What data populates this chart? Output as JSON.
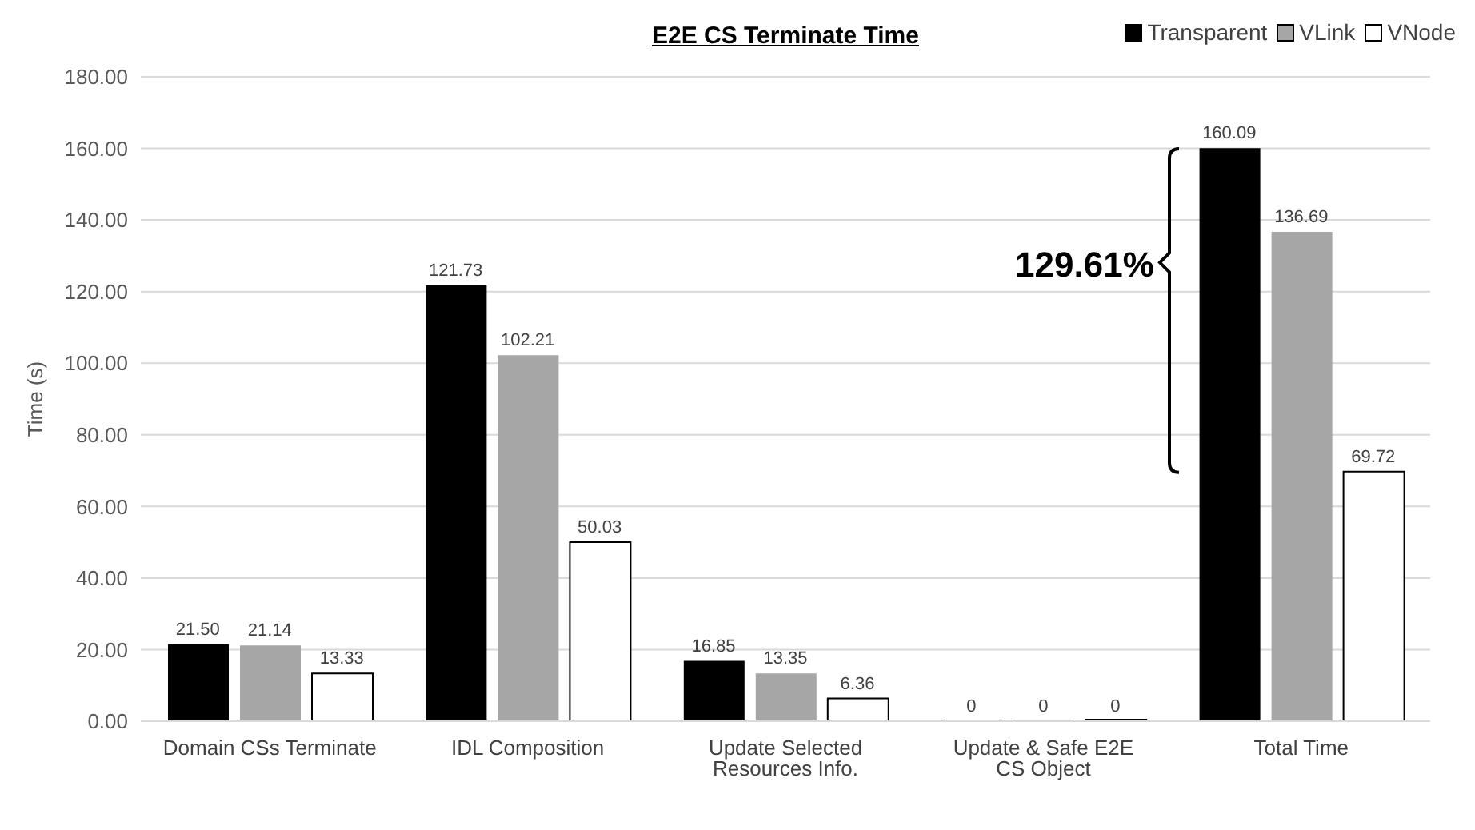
{
  "chart_data": {
    "type": "bar",
    "title": "E2E CS Terminate Time",
    "ylabel": "Time (s)",
    "categories": [
      "Domain CSs Terminate",
      "IDL Composition",
      "Update Selected Resources Info.",
      "Update & Safe E2E CS Object",
      "Total Time"
    ],
    "series": [
      {
        "name": "Transparent",
        "color": "#000000",
        "values": [
          21.5,
          121.73,
          16.85,
          0,
          160.09
        ],
        "value_labels": [
          "21.50",
          "121.73",
          "16.85",
          "0",
          "160.09"
        ]
      },
      {
        "name": "VLink",
        "color": "#a6a6a6",
        "values": [
          21.14,
          102.21,
          13.35,
          0,
          136.69
        ],
        "value_labels": [
          "21.14",
          "102.21",
          "13.35",
          "0",
          "136.69"
        ]
      },
      {
        "name": "VNode",
        "color": "#ffffff",
        "values": [
          13.33,
          50.03,
          6.36,
          0,
          69.72
        ],
        "value_labels": [
          "13.33",
          "50.03",
          "6.36",
          "0",
          "69.72"
        ]
      }
    ],
    "ylim": [
      0,
      180
    ],
    "yticks": [
      {
        "value": 0,
        "label": "0.00"
      },
      {
        "value": 20,
        "label": "20.00"
      },
      {
        "value": 40,
        "label": "40.00"
      },
      {
        "value": 60,
        "label": "60.00"
      },
      {
        "value": 80,
        "label": "80.00"
      },
      {
        "value": 100,
        "label": "100.00"
      },
      {
        "value": 120,
        "label": "120.00"
      },
      {
        "value": 140,
        "label": "140.00"
      },
      {
        "value": 160,
        "label": "160.00"
      },
      {
        "value": 180,
        "label": "180.00"
      }
    ],
    "grid": "y",
    "legend": "top right",
    "annotations": [
      "129.61%"
    ]
  }
}
